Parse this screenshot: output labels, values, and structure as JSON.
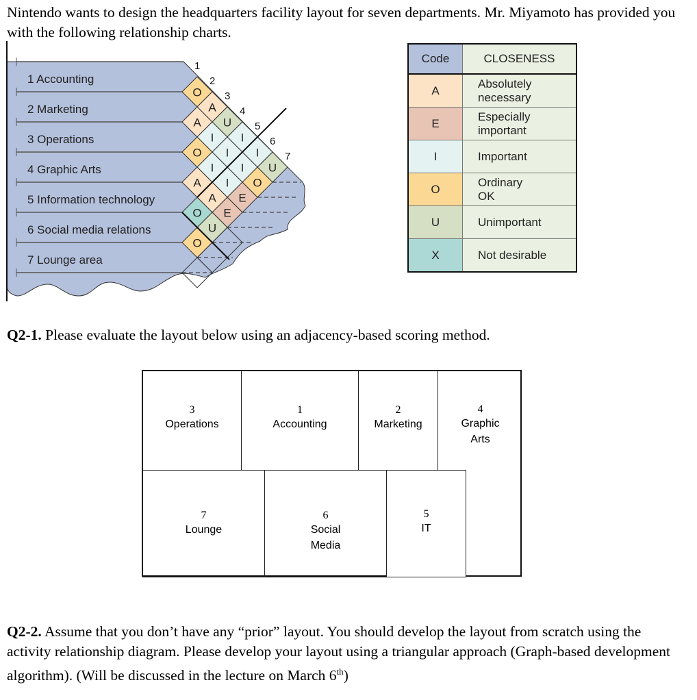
{
  "intro": "Nintendo wants to design the headquarters facility layout for seven departments. Mr. Miyamoto has provided you with the following relationship charts.",
  "relationship_chart": {
    "departments": [
      "1 Accounting",
      "2 Marketing",
      "3 Operations",
      "4 Graphic Arts",
      "5 Information technology",
      "6 Social media relations",
      "7 Lounge area"
    ],
    "column_numbers": [
      "1",
      "2",
      "3",
      "4",
      "5",
      "6",
      "7"
    ],
    "background_color": "#b4c1dd",
    "pairs": [
      {
        "a": 1,
        "b": 2,
        "code": "O"
      },
      {
        "a": 1,
        "b": 3,
        "code": "A"
      },
      {
        "a": 2,
        "b": 3,
        "code": "A"
      },
      {
        "a": 1,
        "b": 4,
        "code": "U"
      },
      {
        "a": 2,
        "b": 4,
        "code": "I"
      },
      {
        "a": 3,
        "b": 4,
        "code": "O"
      },
      {
        "a": 1,
        "b": 5,
        "code": "I"
      },
      {
        "a": 2,
        "b": 5,
        "code": "I"
      },
      {
        "a": 3,
        "b": 5,
        "code": "I"
      },
      {
        "a": 4,
        "b": 5,
        "code": "A"
      },
      {
        "a": 1,
        "b": 6,
        "code": "I"
      },
      {
        "a": 2,
        "b": 6,
        "code": "I"
      },
      {
        "a": 3,
        "b": 6,
        "code": "I"
      },
      {
        "a": 4,
        "b": 6,
        "code": "A"
      },
      {
        "a": 5,
        "b": 6,
        "code": "O",
        "color": "#a8d8d2"
      },
      {
        "a": 1,
        "b": 7,
        "code": "U"
      },
      {
        "a": 2,
        "b": 7,
        "code": "O"
      },
      {
        "a": 3,
        "b": 7,
        "code": "E"
      },
      {
        "a": 4,
        "b": 7,
        "code": "E"
      },
      {
        "a": 5,
        "b": 7,
        "code": "U"
      },
      {
        "a": 6,
        "b": 7,
        "code": "O"
      }
    ]
  },
  "legend": {
    "header": {
      "code": "Code",
      "closeness": "CLOSENESS"
    },
    "rows": [
      {
        "code": "A",
        "label": "Absolutely\nnecessary",
        "color": "#fce3c6"
      },
      {
        "code": "E",
        "label": "Especially\nimportant",
        "color": "#e8c4b4"
      },
      {
        "code": "I",
        "label": "Important",
        "color": "#e4f2f2"
      },
      {
        "code": "O",
        "label": "Ordinary\nOK",
        "color": "#fbd995"
      },
      {
        "code": "U",
        "label": "Unimportant",
        "color": "#d4dfc3"
      },
      {
        "code": "X",
        "label": "Not desirable",
        "color": "#acd8d6"
      }
    ]
  },
  "q21": {
    "label": "Q2-1.",
    "text": " Please evaluate the layout below using an adjacency-based scoring method."
  },
  "layout": {
    "cells": [
      {
        "num": "3",
        "name": "Operations"
      },
      {
        "num": "1",
        "name": "Accounting"
      },
      {
        "num": "2",
        "name": "Marketing"
      },
      {
        "num": "4",
        "name": "Graphic\nArts"
      },
      {
        "num": "7",
        "name": "Lounge"
      },
      {
        "num": "6",
        "name": "Social\nMedia"
      },
      {
        "num": "5",
        "name": "IT"
      }
    ]
  },
  "q22": {
    "label": "Q2-2.",
    "text": " Assume that you don’t have any “prior” layout. You should develop the layout from scratch using the activity relationship diagram. Please develop your layout using a triangular approach (Graph-based development algorithm). (Will be discussed in the lecture on March 6",
    "sup": "th",
    "tail": ")"
  }
}
